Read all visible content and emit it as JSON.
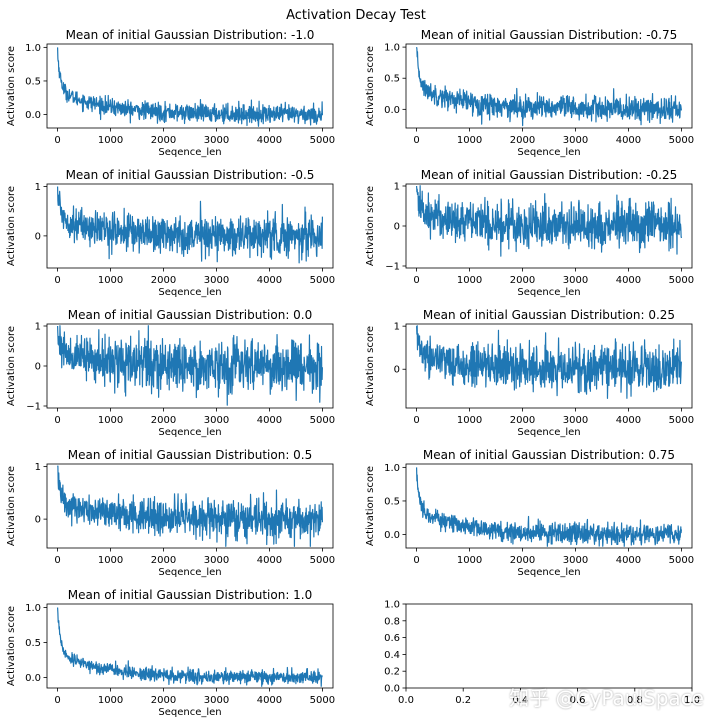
{
  "figure": {
    "suptitle": "Activation Decay Test",
    "watermark": "知乎 @CyPaulSpace",
    "line_color": "#1f77b4"
  },
  "chart_data": [
    {
      "type": "line",
      "title": "Mean of initial Gaussian Distribution: -1.0",
      "xlabel": "Seqence_len",
      "ylabel": "Activation score",
      "xlim": [
        -200,
        5200
      ],
      "ylim": [
        -0.2,
        1.05
      ],
      "xticks": [
        0,
        1000,
        2000,
        3000,
        4000,
        5000
      ],
      "yticks": [
        0.0,
        0.5,
        1.0
      ],
      "ytick_labels": [
        "0.0",
        "0.5",
        "1.0"
      ],
      "series": [
        {
          "x_range": [
            0,
            5000
          ],
          "start": 1.0,
          "mean_end": 0.0,
          "noise": 0.07
        }
      ]
    },
    {
      "type": "line",
      "title": "Mean of initial Gaussian Distribution: -0.75",
      "xlabel": "Seqence_len",
      "ylabel": "Activation score",
      "xlim": [
        -200,
        5200
      ],
      "ylim": [
        -0.3,
        1.05
      ],
      "xticks": [
        0,
        1000,
        2000,
        3000,
        4000,
        5000
      ],
      "yticks": [
        0.0,
        0.5,
        1.0
      ],
      "ytick_labels": [
        "0.0",
        "0.5",
        "1.0"
      ],
      "series": [
        {
          "x_range": [
            0,
            5000
          ],
          "start": 1.0,
          "mean_end": 0.0,
          "noise": 0.1
        }
      ]
    },
    {
      "type": "line",
      "title": "Mean of initial Gaussian Distribution: -0.5",
      "xlabel": "Seqence_len",
      "ylabel": "Activation score",
      "xlim": [
        -200,
        5200
      ],
      "ylim": [
        -0.65,
        1.05
      ],
      "xticks": [
        0,
        1000,
        2000,
        3000,
        4000,
        5000
      ],
      "yticks": [
        0,
        1
      ],
      "ytick_labels": [
        "0",
        "1"
      ],
      "series": [
        {
          "x_range": [
            0,
            5000
          ],
          "start": 1.0,
          "mean_end": 0.0,
          "noise": 0.2
        }
      ]
    },
    {
      "type": "line",
      "title": "Mean of initial Gaussian Distribution: -0.25",
      "xlabel": "Seqence_len",
      "ylabel": "Activation score",
      "xlim": [
        -200,
        5200
      ],
      "ylim": [
        -1.05,
        1.05
      ],
      "xticks": [
        0,
        1000,
        2000,
        3000,
        4000,
        5000
      ],
      "yticks": [
        -1,
        0,
        1
      ],
      "ytick_labels": [
        "−1",
        "0",
        "1"
      ],
      "series": [
        {
          "x_range": [
            0,
            5000
          ],
          "start": 1.0,
          "mean_end": 0.0,
          "noise": 0.3
        }
      ]
    },
    {
      "type": "line",
      "title": "Mean of initial Gaussian Distribution: 0.0",
      "xlabel": "Seqence_len",
      "ylabel": "Activation score",
      "xlim": [
        -200,
        5200
      ],
      "ylim": [
        -1.05,
        1.05
      ],
      "xticks": [
        0,
        1000,
        2000,
        3000,
        4000,
        5000
      ],
      "yticks": [
        -1,
        0,
        1
      ],
      "ytick_labels": [
        "−1",
        "0",
        "1"
      ],
      "series": [
        {
          "x_range": [
            0,
            5000
          ],
          "start": 1.0,
          "mean_end": 0.0,
          "noise": 0.32
        }
      ]
    },
    {
      "type": "line",
      "title": "Mean of initial Gaussian Distribution: 0.25",
      "xlabel": "Seqence_len",
      "ylabel": "Activation score",
      "xlim": [
        -200,
        5200
      ],
      "ylim": [
        -0.9,
        1.05
      ],
      "xticks": [
        0,
        1000,
        2000,
        3000,
        4000,
        5000
      ],
      "yticks": [
        0,
        1
      ],
      "ytick_labels": [
        "0",
        "1"
      ],
      "series": [
        {
          "x_range": [
            0,
            5000
          ],
          "start": 1.0,
          "mean_end": 0.0,
          "noise": 0.28
        }
      ]
    },
    {
      "type": "line",
      "title": "Mean of initial Gaussian Distribution: 0.5",
      "xlabel": "Seqence_len",
      "ylabel": "Activation score",
      "xlim": [
        -200,
        5200
      ],
      "ylim": [
        -0.55,
        1.05
      ],
      "xticks": [
        0,
        1000,
        2000,
        3000,
        4000,
        5000
      ],
      "yticks": [
        0,
        1
      ],
      "ytick_labels": [
        "0",
        "1"
      ],
      "series": [
        {
          "x_range": [
            0,
            5000
          ],
          "start": 1.0,
          "mean_end": 0.0,
          "noise": 0.18
        }
      ]
    },
    {
      "type": "line",
      "title": "Mean of initial Gaussian Distribution: 0.75",
      "xlabel": "Seqence_len",
      "ylabel": "Activation score",
      "xlim": [
        -200,
        5200
      ],
      "ylim": [
        -0.2,
        1.05
      ],
      "xticks": [
        0,
        1000,
        2000,
        3000,
        4000,
        5000
      ],
      "yticks": [
        0.0,
        0.5,
        1.0
      ],
      "ytick_labels": [
        "0.0",
        "0.5",
        "1.0"
      ],
      "series": [
        {
          "x_range": [
            0,
            5000
          ],
          "start": 1.0,
          "mean_end": 0.0,
          "noise": 0.08
        }
      ]
    },
    {
      "type": "line",
      "title": "Mean of initial Gaussian Distribution: 1.0",
      "xlabel": "Seqence_len",
      "ylabel": "Activation score",
      "xlim": [
        -200,
        5200
      ],
      "ylim": [
        -0.15,
        1.05
      ],
      "xticks": [
        0,
        1000,
        2000,
        3000,
        4000,
        5000
      ],
      "yticks": [
        0.0,
        0.5,
        1.0
      ],
      "ytick_labels": [
        "0.0",
        "0.5",
        "1.0"
      ],
      "series": [
        {
          "x_range": [
            0,
            5000
          ],
          "start": 1.0,
          "mean_end": 0.0,
          "noise": 0.05
        }
      ]
    },
    {
      "type": "line",
      "title": "",
      "xlabel": "",
      "ylabel": "",
      "xlim": [
        0,
        1
      ],
      "ylim": [
        0,
        1
      ],
      "xticks": [
        0,
        0.2,
        0.4,
        0.6,
        0.8,
        1.0
      ],
      "xtick_labels": [
        "0.0",
        "0.2",
        "0.4",
        "0.6",
        "0.8",
        "1.0"
      ],
      "yticks": [
        0,
        0.2,
        0.4,
        0.6,
        0.8,
        1.0
      ],
      "ytick_labels": [
        "0.0",
        "0.2",
        "0.4",
        "0.6",
        "0.8",
        "1.0"
      ],
      "series": []
    }
  ]
}
